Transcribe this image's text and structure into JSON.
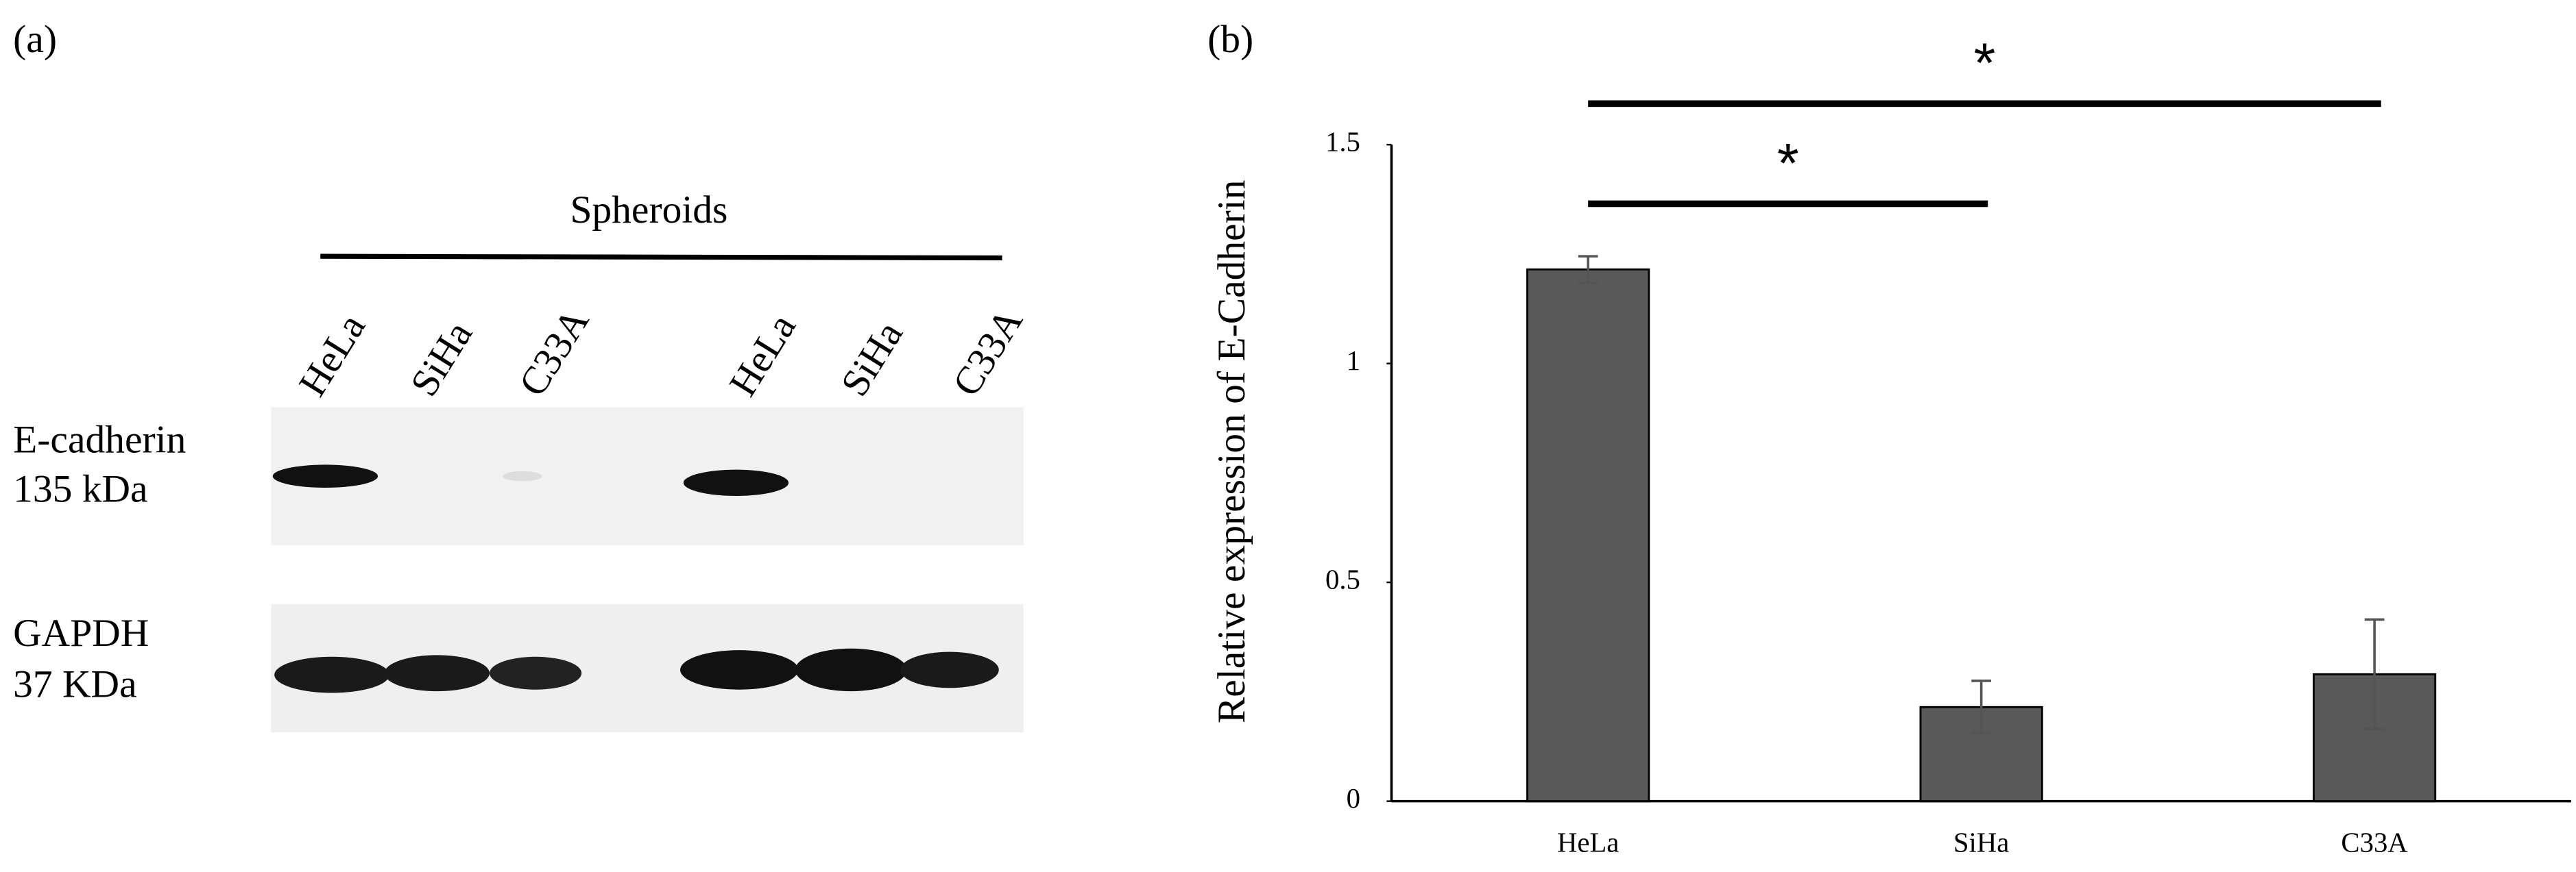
{
  "panel_a": {
    "label": "(a)",
    "group": "Spheroids",
    "lanes": [
      "HeLa",
      "SiHa",
      "C33A",
      "HeLa",
      "SiHa",
      "C33A"
    ],
    "rows": [
      {
        "name": "E-cadherin",
        "size": "135 kDa"
      },
      {
        "name": "GAPDH",
        "size": "37 KDa"
      }
    ]
  },
  "chart_data": {
    "type": "bar",
    "panel_label": "(b)",
    "ylabel": "Relative expression of E-Cadherin",
    "categories": [
      "HeLa",
      "SiHa",
      "C33A"
    ],
    "values": [
      1.215,
      0.215,
      0.29
    ],
    "errors": [
      0.03,
      0.06,
      0.125
    ],
    "color": "#595959",
    "ylim": [
      0,
      1.5
    ],
    "yticks": [
      0,
      0.5,
      1,
      1.5
    ],
    "significance": [
      {
        "label": "*",
        "between": [
          0,
          2
        ]
      },
      {
        "label": "*",
        "between": [
          0,
          1
        ]
      }
    ]
  }
}
